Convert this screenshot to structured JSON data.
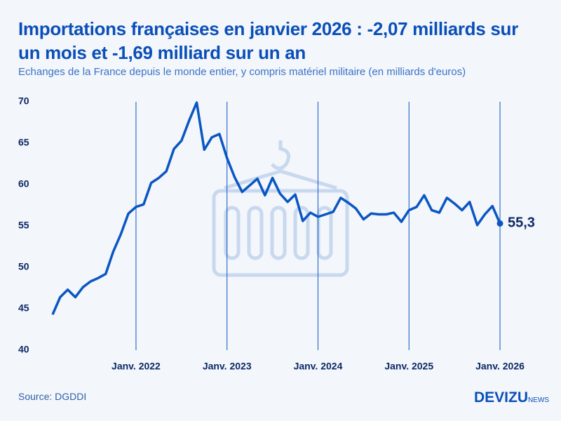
{
  "chart_data": {
    "type": "line",
    "title": "Importations françaises en janvier 2026 : -2,07 milliards sur un mois et -1,69 milliard sur un an",
    "subtitle": "Echanges de la France depuis le monde entier, y compris matériel militaire (en milliards d'euros)",
    "source": "Source: DGDDI",
    "brand": "DEVIZU",
    "brand_suffix": "NEWS",
    "categories": [
      null,
      null,
      null,
      null,
      null,
      null,
      null,
      null,
      null,
      null,
      null,
      "Janv. 2022",
      null,
      null,
      null,
      null,
      null,
      null,
      null,
      null,
      null,
      null,
      null,
      "Janv. 2023",
      null,
      null,
      null,
      null,
      null,
      null,
      null,
      null,
      null,
      null,
      null,
      "Janv. 2024",
      null,
      null,
      null,
      null,
      null,
      null,
      null,
      null,
      null,
      null,
      null,
      "Janv. 2025",
      null,
      null,
      null,
      null,
      null,
      null,
      null,
      null,
      null,
      null,
      null,
      "Janv. 2026"
    ],
    "values": [
      44.3,
      46.4,
      47.3,
      46.4,
      47.6,
      48.3,
      48.7,
      49.2,
      51.9,
      54.0,
      56.5,
      57.3,
      57.6,
      60.2,
      60.8,
      61.6,
      64.3,
      65.3,
      67.7,
      69.9,
      64.2,
      65.7,
      66.1,
      63.2,
      60.9,
      59.1,
      59.9,
      60.7,
      58.7,
      60.8,
      58.9,
      57.9,
      58.8,
      55.6,
      56.6,
      56.1,
      56.4,
      56.7,
      58.4,
      57.8,
      57.1,
      55.8,
      56.5,
      56.4,
      56.4,
      56.6,
      55.5,
      56.9,
      57.3,
      58.7,
      56.9,
      56.6,
      58.4,
      57.7,
      56.9,
      57.9,
      55.1,
      56.4,
      57.4,
      55.3
    ],
    "value_labels": [
      null,
      null,
      null,
      null,
      null,
      null,
      null,
      null,
      null,
      null,
      null,
      null,
      null,
      null,
      null,
      null,
      null,
      null,
      null,
      null,
      null,
      null,
      null,
      null,
      null,
      null,
      null,
      null,
      null,
      null,
      null,
      null,
      null,
      null,
      null,
      null,
      null,
      null,
      null,
      null,
      null,
      null,
      null,
      null,
      null,
      null,
      null,
      null,
      null,
      null,
      null,
      null,
      null,
      null,
      null,
      null,
      null,
      null,
      null,
      "55,3"
    ],
    "color": "#0a56c2",
    "ylim": [
      40,
      70
    ],
    "yticks": [
      40,
      45,
      50,
      55,
      60,
      65,
      70
    ],
    "grid": true
  }
}
